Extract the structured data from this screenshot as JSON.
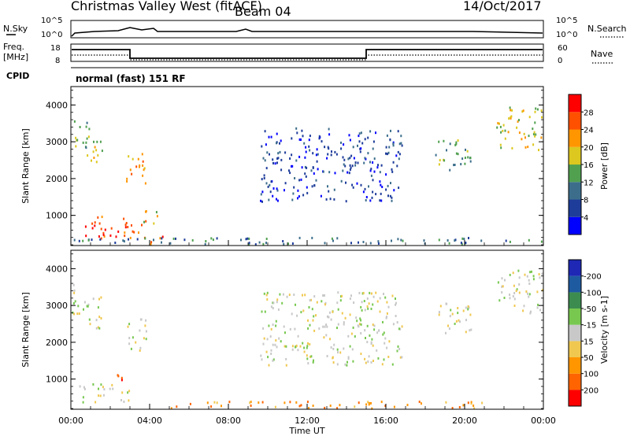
{
  "header": {
    "station": "Christmas Valley West (fitACF)",
    "beam": "Beam 04",
    "date": "14/Oct/2017"
  },
  "noise_panel": {
    "left_label": "N.Sky",
    "right_label": "N.Search",
    "left_ticks": [
      "10^5",
      "10^0"
    ],
    "right_ticks": [
      "10^5",
      "10^0"
    ]
  },
  "freq_panel": {
    "left_label_1": "Freq.",
    "left_label_2": "[MHz]",
    "right_label": "Nave",
    "left_ticks": [
      "18",
      "8"
    ],
    "right_ticks": [
      "60",
      "0"
    ]
  },
  "cpid": {
    "label": "CPID",
    "value": "normal (fast) 151 RF"
  },
  "colors": {
    "power": [
      "#0000ff",
      "#1e3c9a",
      "#3c6e8c",
      "#50a050",
      "#dcc81e",
      "#ff9600",
      "#ff5000",
      "#ff0000"
    ],
    "velocity": [
      "#ff0000",
      "#ff6400",
      "#ff9600",
      "#f0c850",
      "#c8c8c8",
      "#78c850",
      "#3c8c50",
      "#1e5aa0",
      "#1e28b4"
    ]
  },
  "chart_data": [
    {
      "type": "heatmap",
      "variable": "Power",
      "ylabel": "Slant Range [km]",
      "xlabel": "",
      "y_ticks": [
        "1000",
        "2000",
        "3000",
        "4000"
      ],
      "ylim": [
        180,
        4500
      ],
      "colorbar_label": "Power [dB]",
      "colorbar_ticks": [
        "4",
        "8",
        "12",
        "16",
        "20",
        "24",
        "28"
      ],
      "colorbar_range": [
        0,
        32
      ],
      "regions": [
        {
          "t": [
            0.0,
            0.9
          ],
          "r": [
            2700,
            3700
          ],
          "level": 3
        },
        {
          "t": [
            0.8,
            1.6
          ],
          "r": [
            2400,
            3300
          ],
          "level": 4
        },
        {
          "t": [
            2.8,
            3.8
          ],
          "r": [
            1700,
            2700
          ],
          "level": 5
        },
        {
          "t": [
            0.3,
            3.8
          ],
          "r": [
            400,
            1000
          ],
          "level": 6
        },
        {
          "t": [
            3.5,
            4.4
          ],
          "r": [
            800,
            1200
          ],
          "level": 4
        },
        {
          "t": [
            3.8,
            4.8
          ],
          "r": [
            200,
            500
          ],
          "level": 6
        },
        {
          "t": [
            9.6,
            16.8
          ],
          "r": [
            1400,
            3400
          ],
          "level": 1
        },
        {
          "t": [
            18.5,
            20.4
          ],
          "r": [
            2200,
            3100
          ],
          "level": 3
        },
        {
          "t": [
            21.6,
            24.0
          ],
          "r": [
            2800,
            4000
          ],
          "level": 4
        },
        {
          "t": [
            0.0,
            24.0
          ],
          "r": [
            180,
            420
          ],
          "level": 2
        }
      ]
    },
    {
      "type": "heatmap",
      "variable": "Velocity",
      "ylabel": "Slant Range [km]",
      "xlabel": "Time UT",
      "x_ticks": [
        "00:00",
        "04:00",
        "08:00",
        "12:00",
        "16:00",
        "20:00",
        "00:00"
      ],
      "xlim_hours": [
        0,
        24
      ],
      "y_ticks": [
        "1000",
        "2000",
        "3000",
        "4000"
      ],
      "ylim": [
        180,
        4500
      ],
      "colorbar_label": "Velocity [m s-1]",
      "colorbar_ticks": [
        "200",
        "100",
        "50",
        "15",
        "-15",
        "-50",
        "-100",
        "-200"
      ],
      "regions": [
        {
          "t": [
            0.0,
            0.9
          ],
          "r": [
            2700,
            3700
          ],
          "level": 4
        },
        {
          "t": [
            0.8,
            1.6
          ],
          "r": [
            2400,
            3300
          ],
          "level": 4
        },
        {
          "t": [
            2.8,
            3.8
          ],
          "r": [
            1700,
            2700
          ],
          "level": 4
        },
        {
          "t": [
            0.3,
            3.0
          ],
          "r": [
            400,
            900
          ],
          "level": 4
        },
        {
          "t": [
            1.8,
            2.6
          ],
          "r": [
            900,
            1200
          ],
          "level": 1
        },
        {
          "t": [
            3.6,
            4.6
          ],
          "r": [
            180,
            400
          ],
          "level": 0
        },
        {
          "t": [
            9.6,
            16.8
          ],
          "r": [
            1400,
            3400
          ],
          "level": 4
        },
        {
          "t": [
            18.5,
            20.4
          ],
          "r": [
            2200,
            3100
          ],
          "level": 4
        },
        {
          "t": [
            21.6,
            24.0
          ],
          "r": [
            2800,
            4000
          ],
          "level": 4
        },
        {
          "t": [
            5.0,
            21.0
          ],
          "r": [
            180,
            420
          ],
          "level": 2
        }
      ]
    }
  ]
}
